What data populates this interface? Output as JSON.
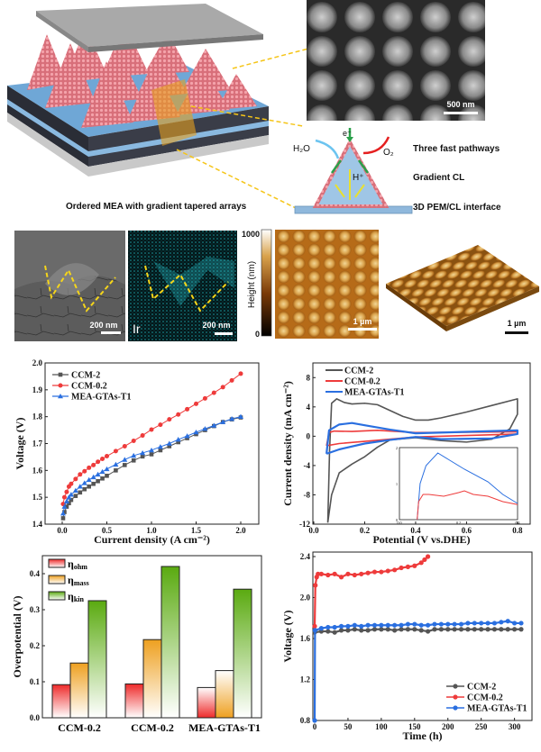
{
  "illustration": {
    "caption": "Ordered MEA with gradient tapered arrays",
    "sem_scale": "500 nm",
    "schematic": {
      "electron": "e⁻",
      "water": "H₂O",
      "oxygen": "O₂",
      "proton": "H⁺",
      "labels": [
        "Three fast pathways",
        "Gradient CL",
        "3D PEM/CL interface"
      ]
    }
  },
  "micrographs": {
    "sem_scale": "200 nm",
    "eds_element": "Ir",
    "eds_scale": "200 nm",
    "colorbar": {
      "title": "Height (nm)",
      "max": "1000",
      "min": "0"
    },
    "afm_scale": "1 µm",
    "afm3d_scale": "1 µm"
  },
  "colors": {
    "ccm2": "#555555",
    "ccm02": "#ee3b3b",
    "gtas": "#2a6fe0",
    "yellow_dash": "#f5d51a"
  },
  "chart_data": [
    {
      "type": "line",
      "xlabel": "Current density (A cm⁻²)",
      "ylabel": "Voltage (V)",
      "xlim": [
        0,
        2.0
      ],
      "ylim": [
        1.4,
        2.0
      ],
      "xticks": [
        "0.0",
        "0.5",
        "1.0",
        "1.5",
        "2.0"
      ],
      "yticks": [
        "1.4",
        "1.5",
        "1.6",
        "1.7",
        "1.8",
        "1.9",
        "2.0"
      ],
      "legend_position": "top-left",
      "x": [
        0.01,
        0.025,
        0.05,
        0.075,
        0.1,
        0.15,
        0.2,
        0.25,
        0.3,
        0.35,
        0.4,
        0.45,
        0.5,
        0.6,
        0.7,
        0.8,
        0.9,
        1.0,
        1.1,
        1.2,
        1.3,
        1.4,
        1.5,
        1.6,
        1.7,
        1.8,
        1.9,
        2.0
      ],
      "series": [
        {
          "name": "CCM-2",
          "marker": "square",
          "color": "#555555",
          "values": [
            1.422,
            1.445,
            1.465,
            1.478,
            1.49,
            1.505,
            1.518,
            1.53,
            1.54,
            1.55,
            1.56,
            1.57,
            1.58,
            1.6,
            1.62,
            1.637,
            1.652,
            1.66,
            1.675,
            1.69,
            1.705,
            1.72,
            1.735,
            1.75,
            1.765,
            1.78,
            1.79,
            1.797
          ]
        },
        {
          "name": "CCM-0.2",
          "marker": "circle",
          "color": "#ee3b3b",
          "values": [
            1.475,
            1.5,
            1.52,
            1.54,
            1.55,
            1.568,
            1.585,
            1.597,
            1.61,
            1.62,
            1.632,
            1.643,
            1.653,
            1.672,
            1.69,
            1.71,
            1.73,
            1.752,
            1.77,
            1.79,
            1.808,
            1.828,
            1.848,
            1.868,
            1.889,
            1.91,
            1.935,
            1.96
          ]
        },
        {
          "name": "MEA-GTAs-T1",
          "marker": "triangle",
          "color": "#2a6fe0",
          "values": [
            1.44,
            1.465,
            1.485,
            1.5,
            1.51,
            1.525,
            1.54,
            1.553,
            1.565,
            1.575,
            1.585,
            1.595,
            1.605,
            1.622,
            1.64,
            1.655,
            1.665,
            1.675,
            1.688,
            1.7,
            1.715,
            1.728,
            1.742,
            1.755,
            1.767,
            1.78,
            1.792,
            1.8
          ]
        }
      ]
    },
    {
      "type": "line",
      "xlabel": "Potential (V vs.DHE)",
      "ylabel": "Current density (mA cm⁻²)",
      "xlim": [
        0,
        0.85
      ],
      "ylim": [
        -12,
        10
      ],
      "xticks": [
        "0.0",
        "0.2",
        "0.4",
        "0.6",
        "0.8"
      ],
      "yticks": [
        "-12",
        "-8",
        "-4",
        "0",
        "4",
        "8"
      ],
      "legend_position": "top-left",
      "series": [
        {
          "name": "CCM-2",
          "color": "#555555",
          "points": [
            [
              0.055,
              -11.8
            ],
            [
              0.062,
              -2
            ],
            [
              0.07,
              4.5
            ],
            [
              0.09,
              5.1
            ],
            [
              0.12,
              4.6
            ],
            [
              0.15,
              4.4
            ],
            [
              0.2,
              4.5
            ],
            [
              0.25,
              4.3
            ],
            [
              0.3,
              3.5
            ],
            [
              0.35,
              2.7
            ],
            [
              0.4,
              2.2
            ],
            [
              0.45,
              2.2
            ],
            [
              0.5,
              2.5
            ],
            [
              0.6,
              3.3
            ],
            [
              0.7,
              4.2
            ],
            [
              0.8,
              5.1
            ],
            [
              0.8,
              3
            ],
            [
              0.77,
              1
            ],
            [
              0.7,
              -0.4
            ],
            [
              0.6,
              -0.8
            ],
            [
              0.5,
              -0.6
            ],
            [
              0.4,
              -0.2
            ],
            [
              0.3,
              -0.5
            ],
            [
              0.25,
              -1.5
            ],
            [
              0.2,
              -2.8
            ],
            [
              0.15,
              -3.8
            ],
            [
              0.1,
              -5
            ],
            [
              0.07,
              -8
            ],
            [
              0.055,
              -11.8
            ]
          ]
        },
        {
          "name": "CCM-0.2",
          "color": "#ee3b3b",
          "points": [
            [
              0.05,
              -1.3
            ],
            [
              0.06,
              0.5
            ],
            [
              0.08,
              0.7
            ],
            [
              0.15,
              0.65
            ],
            [
              0.25,
              0.8
            ],
            [
              0.4,
              0.5
            ],
            [
              0.6,
              0.55
            ],
            [
              0.8,
              0.6
            ],
            [
              0.8,
              0.3
            ],
            [
              0.6,
              0.1
            ],
            [
              0.4,
              -0.1
            ],
            [
              0.2,
              -0.7
            ],
            [
              0.1,
              -1
            ],
            [
              0.05,
              -1.3
            ]
          ]
        },
        {
          "name": "MEA-GTAs-T1",
          "color": "#2a6fe0",
          "points": [
            [
              0.05,
              -2.4
            ],
            [
              0.06,
              0.8
            ],
            [
              0.1,
              1.6
            ],
            [
              0.15,
              1.8
            ],
            [
              0.2,
              1.5
            ],
            [
              0.3,
              0.9
            ],
            [
              0.4,
              0.4
            ],
            [
              0.6,
              0.6
            ],
            [
              0.8,
              0.8
            ],
            [
              0.8,
              0.3
            ],
            [
              0.7,
              -0.3
            ],
            [
              0.5,
              -0.4
            ],
            [
              0.4,
              -0.1
            ],
            [
              0.3,
              -0.5
            ],
            [
              0.2,
              -1
            ],
            [
              0.1,
              -1.8
            ],
            [
              0.05,
              -2.4
            ]
          ]
        }
      ],
      "inset": {
        "xlim": [
          0,
          0.4
        ],
        "ylim": [
          0,
          2
        ],
        "xticks": [
          "0.0",
          "0.2",
          "0.4"
        ],
        "yticks": [
          "0",
          "1",
          "2"
        ],
        "series": [
          {
            "color": "#2a6fe0",
            "points": [
              [
                0.06,
                0
              ],
              [
                0.07,
                1
              ],
              [
                0.09,
                1.5
              ],
              [
                0.13,
                1.85
              ],
              [
                0.17,
                1.65
              ],
              [
                0.22,
                1.4
              ],
              [
                0.3,
                1.05
              ],
              [
                0.35,
                0.7
              ],
              [
                0.4,
                0.45
              ]
            ]
          },
          {
            "color": "#ee3b3b",
            "points": [
              [
                0.06,
                0
              ],
              [
                0.065,
                0.5
              ],
              [
                0.08,
                0.7
              ],
              [
                0.1,
                0.7
              ],
              [
                0.15,
                0.65
              ],
              [
                0.2,
                0.75
              ],
              [
                0.22,
                0.8
              ],
              [
                0.25,
                0.7
              ],
              [
                0.3,
                0.65
              ],
              [
                0.35,
                0.5
              ],
              [
                0.4,
                0.42
              ]
            ]
          }
        ]
      }
    },
    {
      "type": "bar",
      "ylabel": "Overpotential (V)",
      "ylim": [
        0,
        0.45
      ],
      "yticks": [
        "0.0",
        "0.1",
        "0.2",
        "0.3",
        "0.4"
      ],
      "categories": [
        "CCM-0.2",
        "CCM-0.2",
        "MEA-GTAs-T1"
      ],
      "legend_position": "top-left",
      "series": [
        {
          "symbol": "η",
          "sub": "ohm",
          "color": "#ee2a2a",
          "values": [
            0.092,
            0.094,
            0.084
          ]
        },
        {
          "symbol": "η",
          "sub": "mass",
          "color": "#eea020",
          "values": [
            0.152,
            0.217,
            0.131
          ]
        },
        {
          "symbol": "η",
          "sub": "kin",
          "color": "#5aaa10",
          "values": [
            0.325,
            0.42,
            0.357
          ]
        }
      ]
    },
    {
      "type": "line",
      "xlabel": "Time (h)",
      "ylabel": "Voltage (V)",
      "xlim": [
        0,
        310
      ],
      "ylim": [
        0.8,
        2.4
      ],
      "xticks": [
        "0",
        "50",
        "100",
        "150",
        "200",
        "250",
        "300"
      ],
      "yticks": [
        "0.8",
        "1.2",
        "1.6",
        "2.0",
        "2.4"
      ],
      "legend_position": "bottom-right",
      "series": [
        {
          "name": "CCM-2",
          "color": "#555555",
          "points": [
            [
              0,
              1.66
            ],
            [
              10,
              1.67
            ],
            [
              20,
              1.67
            ],
            [
              30,
              1.66
            ],
            [
              40,
              1.68
            ],
            [
              50,
              1.68
            ],
            [
              60,
              1.69
            ],
            [
              70,
              1.68
            ],
            [
              80,
              1.68
            ],
            [
              90,
              1.69
            ],
            [
              100,
              1.69
            ],
            [
              110,
              1.69
            ],
            [
              120,
              1.68
            ],
            [
              130,
              1.69
            ],
            [
              140,
              1.69
            ],
            [
              150,
              1.69
            ],
            [
              160,
              1.68
            ],
            [
              170,
              1.67
            ],
            [
              180,
              1.69
            ],
            [
              190,
              1.69
            ],
            [
              200,
              1.69
            ],
            [
              210,
              1.69
            ],
            [
              220,
              1.69
            ],
            [
              230,
              1.69
            ],
            [
              240,
              1.69
            ],
            [
              250,
              1.69
            ],
            [
              260,
              1.69
            ],
            [
              270,
              1.69
            ],
            [
              280,
              1.69
            ],
            [
              290,
              1.69
            ],
            [
              300,
              1.69
            ],
            [
              310,
              1.69
            ]
          ]
        },
        {
          "name": "CCM-0.2",
          "color": "#ee3b3b",
          "points": [
            [
              0,
              1.72
            ],
            [
              1,
              2.12
            ],
            [
              3,
              2.2
            ],
            [
              5,
              2.23
            ],
            [
              10,
              2.23
            ],
            [
              20,
              2.22
            ],
            [
              30,
              2.23
            ],
            [
              40,
              2.2
            ],
            [
              50,
              2.23
            ],
            [
              60,
              2.22
            ],
            [
              70,
              2.23
            ],
            [
              80,
              2.24
            ],
            [
              90,
              2.25
            ],
            [
              100,
              2.25
            ],
            [
              110,
              2.26
            ],
            [
              120,
              2.27
            ],
            [
              130,
              2.29
            ],
            [
              140,
              2.3
            ],
            [
              150,
              2.31
            ],
            [
              160,
              2.34
            ],
            [
              165,
              2.37
            ],
            [
              170,
              2.4
            ]
          ]
        },
        {
          "name": "MEA-GTAs-T1",
          "color": "#2a6fe0",
          "points": [
            [
              0,
              0.8
            ],
            [
              0.5,
              1.68
            ],
            [
              10,
              1.7
            ],
            [
              20,
              1.71
            ],
            [
              30,
              1.71
            ],
            [
              40,
              1.72
            ],
            [
              50,
              1.72
            ],
            [
              60,
              1.73
            ],
            [
              70,
              1.72
            ],
            [
              80,
              1.73
            ],
            [
              90,
              1.73
            ],
            [
              100,
              1.73
            ],
            [
              110,
              1.73
            ],
            [
              120,
              1.73
            ],
            [
              130,
              1.73
            ],
            [
              140,
              1.74
            ],
            [
              150,
              1.74
            ],
            [
              160,
              1.73
            ],
            [
              170,
              1.73
            ],
            [
              180,
              1.74
            ],
            [
              190,
              1.74
            ],
            [
              200,
              1.74
            ],
            [
              210,
              1.74
            ],
            [
              220,
              1.74
            ],
            [
              230,
              1.75
            ],
            [
              240,
              1.75
            ],
            [
              250,
              1.75
            ],
            [
              260,
              1.75
            ],
            [
              270,
              1.75
            ],
            [
              280,
              1.76
            ],
            [
              290,
              1.77
            ],
            [
              300,
              1.75
            ],
            [
              310,
              1.75
            ]
          ]
        }
      ]
    }
  ]
}
